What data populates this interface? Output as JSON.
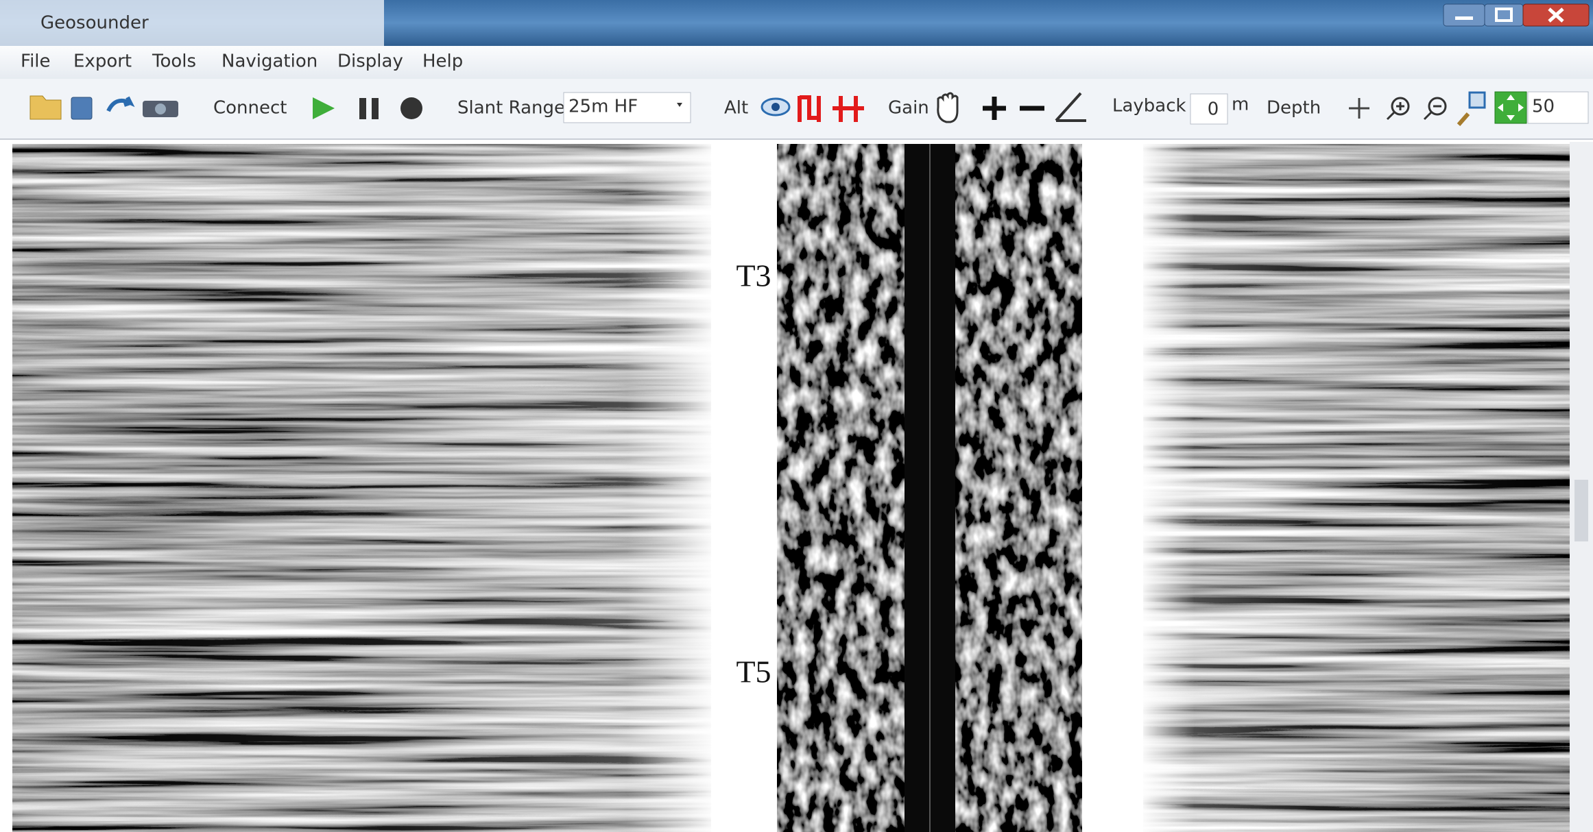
{
  "window": {
    "title": "Geosounder"
  },
  "menu": [
    "File",
    "Export",
    "Tools",
    "Navigation",
    "Display",
    "Help"
  ],
  "toolbar": {
    "connect": "Connect",
    "slant_range_label": "Slant Range",
    "slant_range_value": "25m HF",
    "alt": "Alt",
    "gain": "Gain",
    "layback_label": "Layback",
    "layback_value": "0",
    "layback_unit": "m",
    "depth": "Depth",
    "zoom_value": "50"
  },
  "annotations": [
    "T3",
    "T5"
  ]
}
